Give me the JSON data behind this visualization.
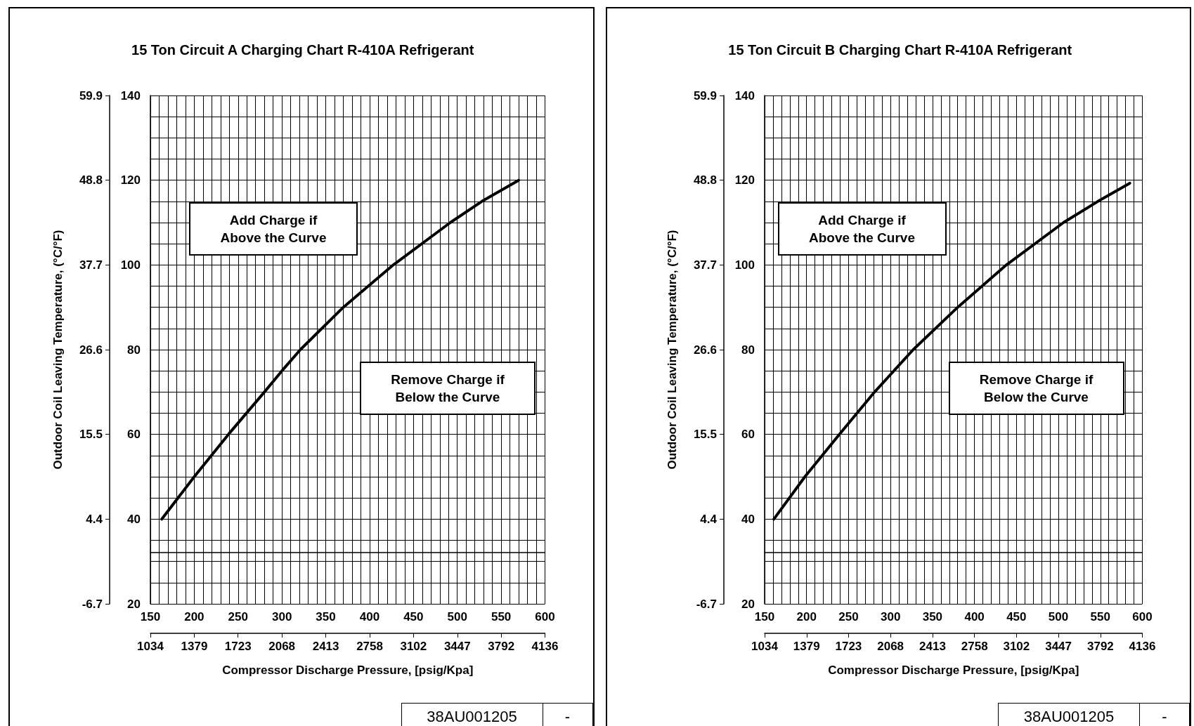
{
  "chart_data": [
    {
      "type": "line",
      "title": "15 Ton Circuit A Charging Chart R-410A Refrigerant",
      "xlabel": "Compressor Discharge Pressure, [psig/Kpa]",
      "y2label": "Outdoor Coil Leaving Temperature, (°C/°F)",
      "series": [
        {
          "color": "#000000",
          "x": [
            163,
            200,
            239,
            280,
            300,
            321,
            370,
            427,
            492,
            528,
            570
          ],
          "values": [
            40,
            50,
            60,
            70,
            75,
            80,
            90,
            100,
            110,
            115,
            120
          ]
        }
      ],
      "xlim": [
        150,
        600
      ],
      "xticks": [
        150,
        200,
        250,
        300,
        350,
        400,
        450,
        500,
        550,
        600
      ],
      "ylim": [
        20,
        140
      ],
      "yticks": [
        20,
        40,
        60,
        80,
        100,
        120,
        140
      ],
      "y2lim": [
        -6.7,
        59.9
      ],
      "y2ticks": [
        -6.7,
        4.4,
        15.5,
        26.6,
        37.7,
        48.8,
        59.9
      ],
      "x2lim": [
        1034,
        4136
      ],
      "x2ticks": [
        1034,
        1379,
        1723,
        2068,
        2413,
        2758,
        3102,
        3447,
        3792,
        4136
      ],
      "annotations": [
        "Add Charge if\nAbove the Curve",
        "Remove Charge if\nBelow the Curve",
        "38AU001205",
        "-"
      ],
      "grid": true,
      "marker": "none",
      "line_style": "solid"
    },
    {
      "type": "line",
      "title": "15 Ton Circuit B Charging Chart R-410A Refrigerant",
      "xlabel": "Compressor Discharge Pressure, [psig/Kpa]",
      "y2label": "Outdoor Coil Leaving Temperature, (°C/°F)",
      "series": [
        {
          "color": "#000000",
          "x": [
            161,
            198,
            239,
            281,
            327,
            380,
            438,
            506,
            547,
            585
          ],
          "values": [
            40,
            50,
            60,
            70,
            80,
            90,
            100,
            110,
            115,
            119.3
          ]
        }
      ],
      "xlim": [
        150,
        600
      ],
      "xticks": [
        150,
        200,
        250,
        300,
        350,
        400,
        450,
        500,
        550,
        600
      ],
      "ylim": [
        20,
        140
      ],
      "yticks": [
        20,
        40,
        60,
        80,
        100,
        120,
        140
      ],
      "y2lim": [
        -6.7,
        59.9
      ],
      "y2ticks": [
        -6.7,
        4.4,
        15.5,
        26.6,
        37.7,
        48.8,
        59.9
      ],
      "x2lim": [
        1034,
        4136
      ],
      "x2ticks": [
        1034,
        1379,
        1723,
        2068,
        2413,
        2758,
        3102,
        3447,
        3792,
        4136
      ],
      "annotations": [
        "Add Charge if\nAbove the Curve",
        "Remove Charge if\nBelow the Curve",
        "38AU001205",
        "-"
      ],
      "grid": true,
      "marker": "none",
      "line_style": "solid"
    }
  ]
}
